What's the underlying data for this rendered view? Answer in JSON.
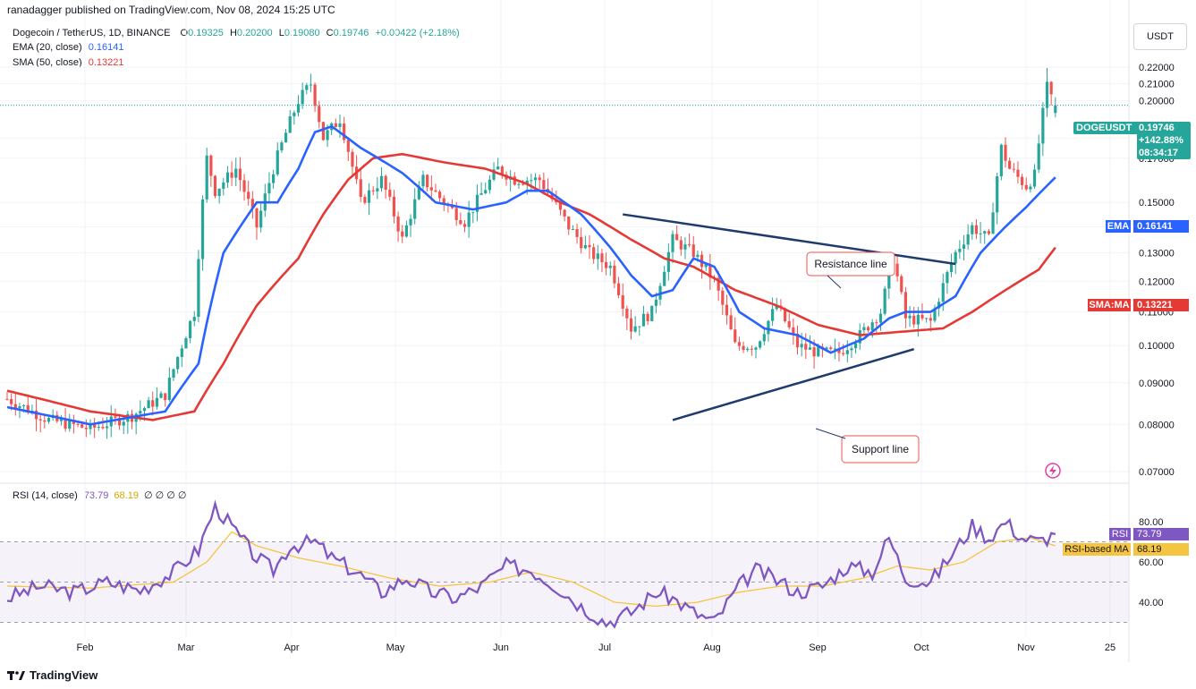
{
  "header": {
    "published": "ranadagger published on TradingView.com, Nov 08, 2024 15:25 UTC",
    "currency": "USDT"
  },
  "legend": {
    "symbol": "Dogecoin / TetherUS, 1D, BINANCE",
    "o_label": "O",
    "o": "0.19325",
    "h_label": "H",
    "h": "0.20200",
    "l_label": "L",
    "l": "0.19080",
    "c_label": "C",
    "c": "0.19746",
    "change": "+0.00422 (+2.18%)",
    "ema_label": "EMA (20, close)",
    "ema_value": "0.16141",
    "sma_label": "SMA (50, close)",
    "sma_value": "0.13221",
    "rsi_label": "RSI (14, close)",
    "rsi_value": "73.79",
    "rsi_ma_value": "68.19",
    "rsi_extra": "∅ ∅ ∅ ∅"
  },
  "badges": {
    "doge_name": "DOGEUSDT",
    "doge_price": "0.19746",
    "doge_change": "+142.88%",
    "doge_timer": "08:34:17",
    "ema_name": "EMA",
    "ema_value": "0.16141",
    "sma_name": "SMA:MA",
    "sma_value": "0.13221",
    "rsi_name": "RSI",
    "rsi_value": "73.79",
    "rsima_name": "RSI-based MA",
    "rsima_value": "68.19"
  },
  "annotations": {
    "resistance": "Resistance line",
    "support": "Support line"
  },
  "footer": {
    "brand": "TradingView"
  },
  "colors": {
    "up": "#26a69a",
    "down": "#ef5350",
    "ema": "#2962ff",
    "sma": "#e53935",
    "rsi": "#7e57c2",
    "rsi_ma": "#f5c542",
    "trend": "#1f3a6e"
  },
  "chart_data": [
    {
      "type": "candlestick",
      "title": "Dogecoin / TetherUS, 1D, BINANCE",
      "x_ticks": [
        "Feb",
        "Mar",
        "Apr",
        "May",
        "Jun",
        "Jul",
        "Aug",
        "Sep",
        "Oct",
        "Nov",
        "25"
      ],
      "y_ticks": [
        "0.07000",
        "0.08000",
        "0.09000",
        "0.10000",
        "0.11000",
        "0.12000",
        "0.13000",
        "0.14000",
        "0.15000",
        "0.17000",
        "0.18000",
        "0.20000",
        "0.21000",
        "0.22000"
      ],
      "ylim": [
        0.065,
        0.23
      ],
      "series": [
        {
          "name": "EMA (20, close)",
          "last": 0.16141
        },
        {
          "name": "SMA (50, close)",
          "last": 0.13221
        }
      ],
      "price_path": [
        [
          0,
          0.086
        ],
        [
          10,
          0.081
        ],
        [
          20,
          0.079
        ],
        [
          30,
          0.082
        ],
        [
          38,
          0.087
        ],
        [
          45,
          0.11
        ],
        [
          48,
          0.17
        ],
        [
          50,
          0.155
        ],
        [
          55,
          0.165
        ],
        [
          60,
          0.14
        ],
        [
          64,
          0.165
        ],
        [
          70,
          0.2
        ],
        [
          73,
          0.21
        ],
        [
          76,
          0.18
        ],
        [
          80,
          0.19
        ],
        [
          85,
          0.15
        ],
        [
          90,
          0.16
        ],
        [
          95,
          0.135
        ],
        [
          100,
          0.16
        ],
        [
          105,
          0.15
        ],
        [
          110,
          0.142
        ],
        [
          118,
          0.165
        ],
        [
          122,
          0.16
        ],
        [
          128,
          0.16
        ],
        [
          135,
          0.14
        ],
        [
          140,
          0.13
        ],
        [
          145,
          0.125
        ],
        [
          150,
          0.105
        ],
        [
          155,
          0.11
        ],
        [
          160,
          0.135
        ],
        [
          165,
          0.13
        ],
        [
          170,
          0.12
        ],
        [
          175,
          0.1
        ],
        [
          180,
          0.1
        ],
        [
          185,
          0.112
        ],
        [
          190,
          0.1
        ],
        [
          195,
          0.098
        ],
        [
          200,
          0.098
        ],
        [
          205,
          0.103
        ],
        [
          210,
          0.11
        ],
        [
          213,
          0.128
        ],
        [
          216,
          0.108
        ],
        [
          222,
          0.107
        ],
        [
          228,
          0.13
        ],
        [
          232,
          0.14
        ],
        [
          236,
          0.135
        ],
        [
          239,
          0.175
        ],
        [
          241,
          0.165
        ],
        [
          245,
          0.157
        ],
        [
          247,
          0.162
        ],
        [
          250,
          0.208
        ],
        [
          252,
          0.197
        ]
      ],
      "ema_path": [
        [
          0,
          0.084
        ],
        [
          20,
          0.08
        ],
        [
          38,
          0.083
        ],
        [
          46,
          0.095
        ],
        [
          52,
          0.13
        ],
        [
          60,
          0.15
        ],
        [
          65,
          0.15
        ],
        [
          70,
          0.165
        ],
        [
          74,
          0.183
        ],
        [
          78,
          0.186
        ],
        [
          85,
          0.175
        ],
        [
          95,
          0.163
        ],
        [
          103,
          0.15
        ],
        [
          112,
          0.147
        ],
        [
          120,
          0.15
        ],
        [
          125,
          0.155
        ],
        [
          130,
          0.155
        ],
        [
          138,
          0.145
        ],
        [
          145,
          0.132
        ],
        [
          150,
          0.122
        ],
        [
          155,
          0.115
        ],
        [
          160,
          0.117
        ],
        [
          165,
          0.128
        ],
        [
          170,
          0.125
        ],
        [
          176,
          0.11
        ],
        [
          182,
          0.105
        ],
        [
          190,
          0.103
        ],
        [
          198,
          0.098
        ],
        [
          206,
          0.102
        ],
        [
          212,
          0.108
        ],
        [
          216,
          0.11
        ],
        [
          222,
          0.11
        ],
        [
          228,
          0.115
        ],
        [
          234,
          0.13
        ],
        [
          240,
          0.14
        ],
        [
          245,
          0.148
        ],
        [
          252,
          0.161
        ]
      ],
      "sma_path": [
        [
          0,
          0.088
        ],
        [
          20,
          0.083
        ],
        [
          35,
          0.081
        ],
        [
          45,
          0.083
        ],
        [
          52,
          0.095
        ],
        [
          60,
          0.112
        ],
        [
          70,
          0.128
        ],
        [
          76,
          0.145
        ],
        [
          82,
          0.16
        ],
        [
          88,
          0.17
        ],
        [
          95,
          0.172
        ],
        [
          105,
          0.168
        ],
        [
          115,
          0.165
        ],
        [
          125,
          0.158
        ],
        [
          133,
          0.15
        ],
        [
          140,
          0.145
        ],
        [
          150,
          0.135
        ],
        [
          158,
          0.128
        ],
        [
          165,
          0.125
        ],
        [
          175,
          0.117
        ],
        [
          185,
          0.112
        ],
        [
          195,
          0.106
        ],
        [
          205,
          0.103
        ],
        [
          215,
          0.104
        ],
        [
          225,
          0.105
        ],
        [
          232,
          0.11
        ],
        [
          240,
          0.117
        ],
        [
          248,
          0.124
        ],
        [
          252,
          0.132
        ]
      ],
      "trendlines": [
        {
          "name": "Resistance line",
          "from": [
            148,
            0.145
          ],
          "to": [
            228,
            0.126
          ]
        },
        {
          "name": "Support line",
          "from": [
            160,
            0.081
          ],
          "to": [
            218,
            0.099
          ]
        }
      ]
    },
    {
      "type": "line",
      "title": "RSI (14, close)",
      "y_ticks": [
        "40.00",
        "60.00",
        "80.00"
      ],
      "ylim": [
        25,
        90
      ],
      "bands": [
        30,
        50,
        70
      ],
      "series": [
        {
          "name": "RSI (14, close)",
          "last": 73.79,
          "path": [
            [
              0,
              42
            ],
            [
              8,
              48
            ],
            [
              16,
              45
            ],
            [
              24,
              50
            ],
            [
              32,
              46
            ],
            [
              40,
              55
            ],
            [
              46,
              66
            ],
            [
              50,
              88
            ],
            [
              53,
              80
            ],
            [
              56,
              72
            ],
            [
              60,
              62
            ],
            [
              64,
              56
            ],
            [
              68,
              68
            ],
            [
              74,
              70
            ],
            [
              78,
              62
            ],
            [
              84,
              55
            ],
            [
              90,
              45
            ],
            [
              96,
              52
            ],
            [
              102,
              45
            ],
            [
              108,
              42
            ],
            [
              114,
              48
            ],
            [
              120,
              58
            ],
            [
              126,
              56
            ],
            [
              132,
              48
            ],
            [
              138,
              38
            ],
            [
              144,
              30
            ],
            [
              150,
              35
            ],
            [
              156,
              45
            ],
            [
              160,
              42
            ],
            [
              165,
              35
            ],
            [
              170,
              30
            ],
            [
              176,
              48
            ],
            [
              180,
              56
            ],
            [
              186,
              50
            ],
            [
              190,
              45
            ],
            [
              196,
              48
            ],
            [
              202,
              58
            ],
            [
              208,
              55
            ],
            [
              212,
              72
            ],
            [
              216,
              52
            ],
            [
              222,
              50
            ],
            [
              228,
              66
            ],
            [
              232,
              78
            ],
            [
              236,
              72
            ],
            [
              240,
              80
            ],
            [
              244,
              72
            ],
            [
              248,
              70
            ],
            [
              252,
              74
            ]
          ]
        },
        {
          "name": "RSI-based MA",
          "last": 68.19,
          "path": [
            [
              0,
              48
            ],
            [
              20,
              47
            ],
            [
              40,
              50
            ],
            [
              48,
              60
            ],
            [
              54,
              75
            ],
            [
              60,
              68
            ],
            [
              70,
              62
            ],
            [
              80,
              58
            ],
            [
              92,
              52
            ],
            [
              104,
              48
            ],
            [
              116,
              50
            ],
            [
              126,
              55
            ],
            [
              136,
              50
            ],
            [
              146,
              40
            ],
            [
              156,
              38
            ],
            [
              166,
              40
            ],
            [
              176,
              45
            ],
            [
              186,
              48
            ],
            [
              196,
              48
            ],
            [
              206,
              52
            ],
            [
              214,
              58
            ],
            [
              222,
              56
            ],
            [
              230,
              60
            ],
            [
              238,
              70
            ],
            [
              246,
              72
            ],
            [
              252,
              68
            ]
          ]
        }
      ]
    }
  ]
}
